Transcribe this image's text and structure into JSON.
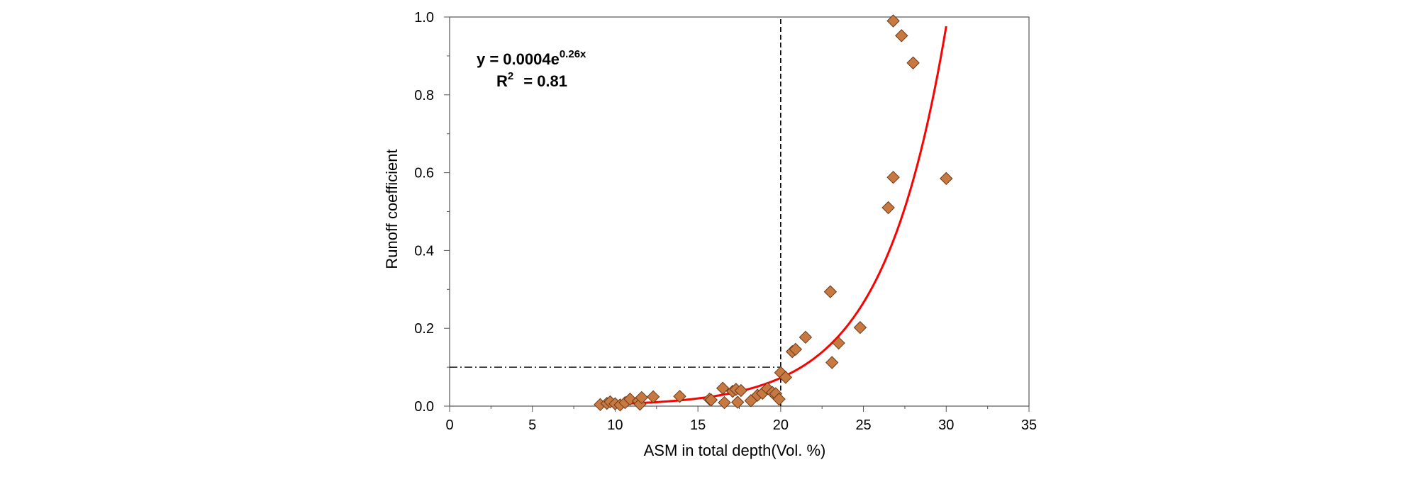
{
  "chart_data": {
    "type": "scatter",
    "xlabel": "ASM in total depth(Vol. %)",
    "ylabel": "Runoff coefficient",
    "xlim": [
      0,
      35
    ],
    "ylim": [
      0,
      1.0
    ],
    "x_ticks": [
      "0",
      "5",
      "10",
      "15",
      "20",
      "25",
      "30",
      "35"
    ],
    "y_ticks": [
      "0.0",
      "0.2",
      "0.4",
      "0.6",
      "0.8",
      "1.0"
    ],
    "grid": false,
    "marker_color": "#c87941",
    "marker_edge_color": "#6b3a1a",
    "fit_color": "#ff0000",
    "equation": {
      "prefix": "y = 0.0004e",
      "exponent": "0.26x",
      "r_label": "R",
      "r_sup": "2",
      "r_value": "= 0.81"
    },
    "fit": {
      "a": 0.0004,
      "b": 0.26,
      "x_range": [
        9,
        30
      ]
    },
    "reference_lines": [
      {
        "style": "dashed",
        "orientation": "vertical",
        "x": 20,
        "y_range": [
          0,
          1.0
        ]
      },
      {
        "style": "dash-dot",
        "orientation": "horizontal",
        "y": 0.1,
        "x_range": [
          0,
          20
        ]
      }
    ],
    "points": [
      [
        9.1,
        0.004
      ],
      [
        9.5,
        0.007
      ],
      [
        9.7,
        0.011
      ],
      [
        10.0,
        0.006
      ],
      [
        10.3,
        0.003
      ],
      [
        10.6,
        0.009
      ],
      [
        10.9,
        0.018
      ],
      [
        11.4,
        0.013
      ],
      [
        11.5,
        0.005
      ],
      [
        11.6,
        0.022
      ],
      [
        12.3,
        0.024
      ],
      [
        13.9,
        0.025
      ],
      [
        15.7,
        0.018
      ],
      [
        15.8,
        0.016
      ],
      [
        16.5,
        0.046
      ],
      [
        16.6,
        0.009
      ],
      [
        17.1,
        0.038
      ],
      [
        17.3,
        0.043
      ],
      [
        17.4,
        0.01
      ],
      [
        17.6,
        0.04
      ],
      [
        18.2,
        0.014
      ],
      [
        18.6,
        0.028
      ],
      [
        18.9,
        0.033
      ],
      [
        19.2,
        0.045
      ],
      [
        19.5,
        0.035
      ],
      [
        19.7,
        0.032
      ],
      [
        19.9,
        0.018
      ],
      [
        20.0,
        0.086
      ],
      [
        20.3,
        0.074
      ],
      [
        20.7,
        0.14
      ],
      [
        20.9,
        0.146
      ],
      [
        21.5,
        0.177
      ],
      [
        23.0,
        0.294
      ],
      [
        23.1,
        0.112
      ],
      [
        23.5,
        0.162
      ],
      [
        24.8,
        0.202
      ],
      [
        26.5,
        0.51
      ],
      [
        26.8,
        0.588
      ],
      [
        26.8,
        0.99
      ],
      [
        27.3,
        0.952
      ],
      [
        28.0,
        0.882
      ],
      [
        30.0,
        0.585
      ]
    ]
  }
}
